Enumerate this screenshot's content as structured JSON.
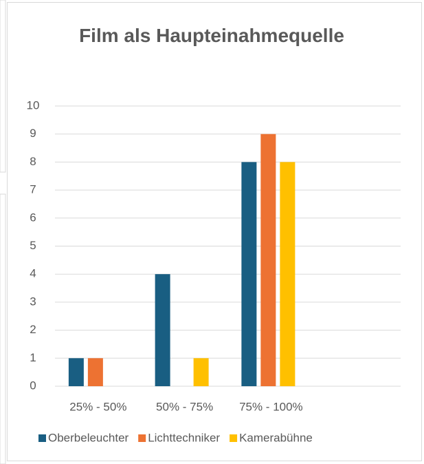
{
  "chart_data": {
    "type": "bar",
    "title": "Film als Haupteinahmequelle",
    "categories": [
      "25% - 50%",
      "50% - 75%",
      "75% - 100%",
      null
    ],
    "series": [
      {
        "name": "Oberbeleuchter",
        "color": "#195e82",
        "values": [
          1,
          4,
          8,
          0
        ]
      },
      {
        "name": "Lichttechniker",
        "color": "#ed7232",
        "values": [
          1,
          0,
          9,
          0
        ]
      },
      {
        "name": "Kamerabühne",
        "color": "#ffc000",
        "values": [
          0,
          1,
          8,
          0
        ]
      }
    ],
    "ylim": [
      0,
      10
    ],
    "yticks": [
      0,
      1,
      2,
      3,
      4,
      5,
      6,
      7,
      8,
      9,
      10
    ],
    "grid": true,
    "legend": "bottom"
  }
}
